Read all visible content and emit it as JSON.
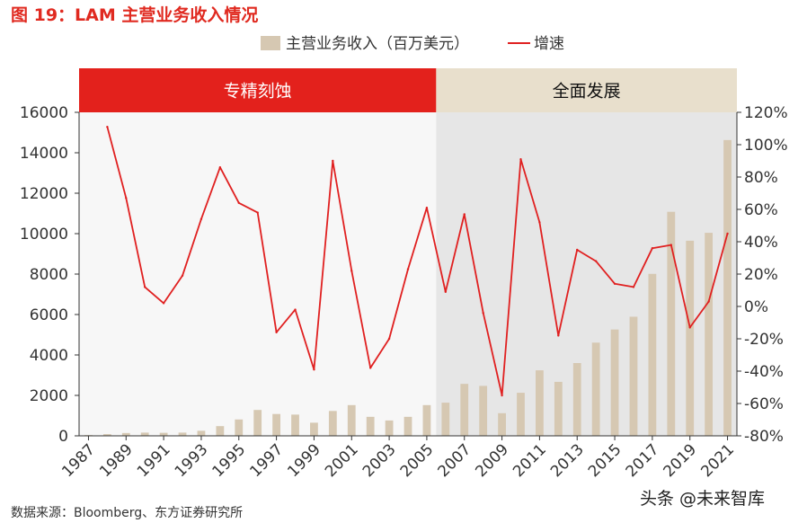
{
  "figure": {
    "title": "图 19：LAM 主营业务收入情况",
    "source": "数据来源：Bloomberg、东方证券研究所",
    "watermark": "头条 @未来智库"
  },
  "colors": {
    "bar": "#d6c8b2",
    "line": "#e02020",
    "phase1_header": "#e3211c",
    "phase1_bg": "#f7f7f7",
    "phase2_header": "#e8dfcc",
    "phase2_bg": "#e6e6e6",
    "title": "#e02a20"
  },
  "chart_data": {
    "type": "bar+line",
    "title": "",
    "legend": [
      "主营业务收入（百万美元）",
      "增速"
    ],
    "legend_position": "top-center",
    "phases": [
      {
        "label": "专精刻蚀",
        "from": 1987,
        "to": 2005
      },
      {
        "label": "全面发展",
        "from": 2006,
        "to": 2021
      }
    ],
    "x": [
      1987,
      1988,
      1989,
      1990,
      1991,
      1992,
      1993,
      1994,
      1995,
      1996,
      1997,
      1998,
      1999,
      2000,
      2001,
      2002,
      2003,
      2004,
      2005,
      2006,
      2007,
      2008,
      2009,
      2010,
      2011,
      2012,
      2013,
      2014,
      2015,
      2016,
      2017,
      2018,
      2019,
      2020,
      2021
    ],
    "x_tick_labels": [
      "1987",
      "1989",
      "1991",
      "1993",
      "1995",
      "1997",
      "1999",
      "2001",
      "2003",
      "2005",
      "2007",
      "2009",
      "2011",
      "2013",
      "2015",
      "2017",
      "2019",
      "2021"
    ],
    "series": [
      {
        "name": "主营业务收入（百万美元）",
        "axis": "left",
        "kind": "bar",
        "values": [
          40,
          85,
          140,
          160,
          150,
          160,
          250,
          480,
          810,
          1280,
          1080,
          1050,
          650,
          1230,
          1520,
          940,
          760,
          940,
          1520,
          1640,
          2570,
          2470,
          1120,
          2130,
          3240,
          2670,
          3600,
          4610,
          5260,
          5890,
          8010,
          11080,
          9650,
          10040,
          14630
        ]
      },
      {
        "name": "增速",
        "axis": "right",
        "kind": "line",
        "values": [
          null,
          111,
          67,
          12,
          2,
          19,
          54,
          86,
          64,
          58,
          -16,
          -2,
          -39,
          90,
          22,
          -38,
          -20,
          23,
          61,
          9,
          57,
          -4,
          -55,
          91,
          52,
          -18,
          35,
          28,
          14,
          12,
          36,
          38,
          -13,
          3,
          45
        ]
      }
    ],
    "y_left": {
      "min": 0,
      "max": 16000,
      "ticks": [
        "0",
        "2000",
        "4000",
        "6000",
        "8000",
        "10000",
        "12000",
        "14000",
        "16000"
      ]
    },
    "y_right": {
      "min": -80,
      "max": 120,
      "ticks": [
        "-80%",
        "-60%",
        "-40%",
        "-20%",
        "0%",
        "20%",
        "40%",
        "60%",
        "80%",
        "100%",
        "120%"
      ]
    }
  }
}
